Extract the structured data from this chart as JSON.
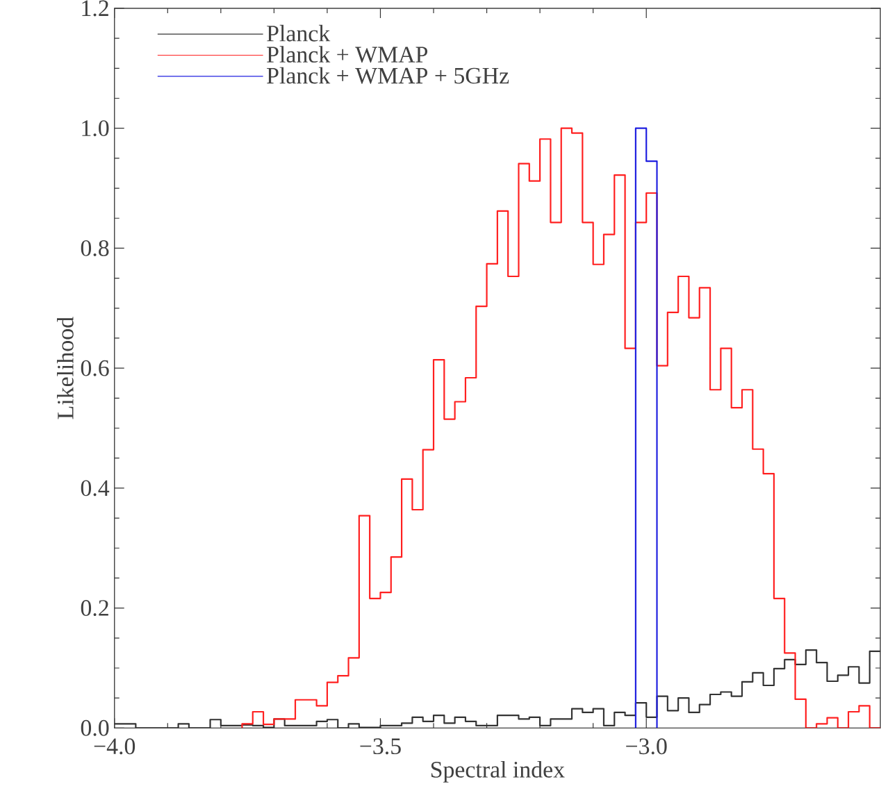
{
  "chart_data": {
    "type": "histogram",
    "xlabel": "Spectral index",
    "ylabel": "Likelihood",
    "bins": [
      -4.0,
      -3.98,
      -3.96,
      -3.94,
      -3.92,
      -3.9,
      -3.88,
      -3.86,
      -3.84,
      -3.82,
      -3.8,
      -3.78,
      -3.76,
      -3.74,
      -3.72,
      -3.7,
      -3.68,
      -3.66,
      -3.64,
      -3.62,
      -3.6,
      -3.58,
      -3.56,
      -3.54,
      -3.52,
      -3.5,
      -3.48,
      -3.46,
      -3.44,
      -3.42,
      -3.4,
      -3.38,
      -3.36,
      -3.34,
      -3.32,
      -3.3,
      -3.28,
      -3.26,
      -3.24,
      -3.22,
      -3.2,
      -3.18,
      -3.16,
      -3.14,
      -3.12,
      -3.1,
      -3.08,
      -3.06,
      -3.04,
      -3.02,
      -3.0,
      -2.98,
      -2.96,
      -2.94,
      -2.92,
      -2.9,
      -2.88,
      -2.86,
      -2.84,
      -2.82,
      -2.8,
      -2.78,
      -2.76,
      -2.74,
      -2.72,
      -2.7,
      -2.68,
      -2.66,
      -2.64,
      -2.62,
      -2.6,
      -2.58,
      -2.56
    ],
    "series": [
      {
        "name": "Planck",
        "color": "#333333",
        "values": [
          0.007,
          0.007,
          0,
          0,
          0,
          0,
          0.007,
          0,
          0,
          0.014,
          0.004,
          0.004,
          0.005,
          0.004,
          0.001,
          0.015,
          0.004,
          0.004,
          0.004,
          0.011,
          0.014,
          0,
          0.007,
          0.001,
          0.001,
          0.004,
          0.004,
          0.008,
          0.018,
          0.011,
          0.021,
          0.008,
          0.018,
          0.011,
          0.004,
          0.004,
          0.021,
          0.021,
          0.015,
          0.018,
          0.004,
          0.015,
          0.015,
          0.032,
          0.026,
          0.032,
          0.004,
          0.026,
          0.021,
          0.042,
          0.018,
          0.053,
          0.029,
          0.05,
          0.026,
          0.039,
          0.056,
          0.06,
          0.053,
          0.077,
          0.092,
          0.071,
          0.099,
          0.114,
          0.106,
          0.13,
          0.109,
          0.078,
          0.088,
          0.102,
          0.075,
          0.128
        ]
      },
      {
        "name": "Planck + WMAP",
        "color": "#ff2020",
        "bins": [
          -3.76,
          -3.74,
          -3.72,
          -3.7,
          -3.68,
          -3.66,
          -3.64,
          -3.62,
          -3.6,
          -3.58,
          -3.56,
          -3.54,
          -3.52,
          -3.5,
          -3.48,
          -3.46,
          -3.44,
          -3.42,
          -3.4,
          -3.38,
          -3.36,
          -3.34,
          -3.32,
          -3.3,
          -3.28,
          -3.26,
          -3.24,
          -3.22,
          -3.2,
          -3.18,
          -3.16,
          -3.14,
          -3.12,
          -3.1,
          -3.08,
          -3.06,
          -3.04,
          -3.02,
          -3.0,
          -2.98,
          -2.96,
          -2.94,
          -2.92,
          -2.9,
          -2.88,
          -2.86,
          -2.84,
          -2.82,
          -2.8,
          -2.78,
          -2.76,
          -2.74,
          -2.72,
          -2.7,
          -2.68,
          -2.66,
          -2.64,
          -2.62,
          -2.6,
          -2.58,
          -2.56
        ],
        "values": [
          0.007,
          0.027,
          0.006,
          0.015,
          0.015,
          0.047,
          0.047,
          0.037,
          0.076,
          0.087,
          0.117,
          0.354,
          0.216,
          0.226,
          0.285,
          0.415,
          0.364,
          0.464,
          0.614,
          0.515,
          0.544,
          0.584,
          0.703,
          0.774,
          0.862,
          0.753,
          0.941,
          0.912,
          0.982,
          0.843,
          1.0,
          0.992,
          0.843,
          0.773,
          0.823,
          0.922,
          0.633,
          0.843,
          0.892,
          0.604,
          0.693,
          0.753,
          0.684,
          0.734,
          0.564,
          0.633,
          0.534,
          0.564,
          0.465,
          0.424,
          0.216,
          0.125,
          0.048,
          0,
          0.007,
          0.017,
          0,
          0.027,
          0.037,
          0
        ]
      },
      {
        "name": "Planck + WMAP + 5GHz",
        "color": "#2020e0",
        "bins": [
          -3.02,
          -3.0,
          -2.98
        ],
        "values": [
          1.0,
          0.945
        ]
      }
    ],
    "xlim": [
      -4.0,
      -2.56
    ],
    "ylim": [
      0,
      1.2
    ],
    "xticks": [
      {
        "value": -4.0,
        "label": "−4.0"
      },
      {
        "value": -3.5,
        "label": "−3.5"
      },
      {
        "value": -3.0,
        "label": "−3.0"
      }
    ],
    "yticks": [
      {
        "value": 0,
        "label": "0.0"
      },
      {
        "value": 0.2,
        "label": "0.2"
      },
      {
        "value": 0.4,
        "label": "0.4"
      },
      {
        "value": 0.6,
        "label": "0.6"
      },
      {
        "value": 0.8,
        "label": "0.8"
      },
      {
        "value": 1.0,
        "label": "1.0"
      },
      {
        "value": 1.2,
        "label": "1.2"
      }
    ],
    "legend": "top left",
    "grid": false
  }
}
